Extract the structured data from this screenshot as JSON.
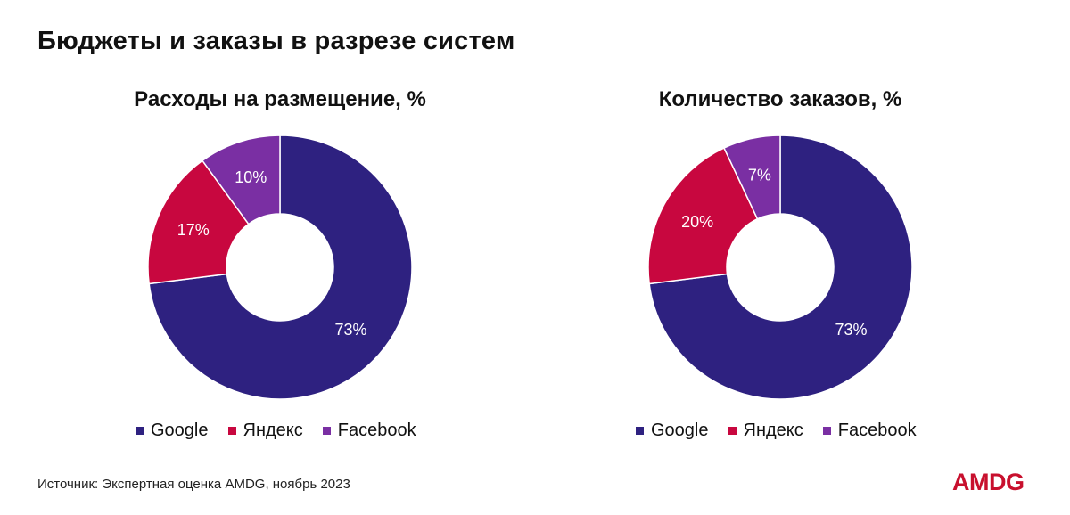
{
  "page": {
    "title": "Бюджеты и заказы в разрезе систем",
    "source": "Источник: Экспертная оценка AMDG, ноябрь 2023",
    "logo": "AMDG"
  },
  "colors": {
    "Google": "#2e2180",
    "Яндекс": "#c8073f",
    "Facebook": "#7a2fa3"
  },
  "chart_data": [
    {
      "type": "pie",
      "title": "Расходы на размещение, %",
      "categories": [
        "Google",
        "Яндекс",
        "Facebook"
      ],
      "values": [
        73,
        17,
        10
      ],
      "labels": [
        "73%",
        "17%",
        "10%"
      ],
      "donut": true,
      "legend": "bottom"
    },
    {
      "type": "pie",
      "title": "Количество заказов, %",
      "categories": [
        "Google",
        "Яндекс",
        "Facebook"
      ],
      "values": [
        73,
        20,
        7
      ],
      "labels": [
        "73%",
        "20%",
        "7%"
      ],
      "donut": true,
      "legend": "bottom"
    }
  ]
}
